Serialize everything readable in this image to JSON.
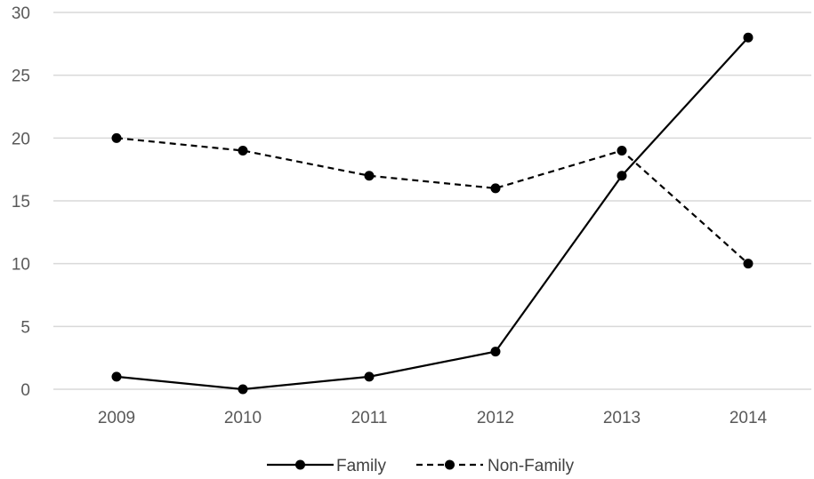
{
  "chart_data": {
    "type": "line",
    "title": "",
    "xlabel": "",
    "ylabel": "",
    "categories": [
      "2009",
      "2010",
      "2011",
      "2012",
      "2013",
      "2014"
    ],
    "ylim": [
      0,
      30
    ],
    "yticks": [
      0,
      5,
      10,
      15,
      20,
      25,
      30
    ],
    "grid": true,
    "legend_position": "bottom",
    "series": [
      {
        "name": "Family",
        "values": [
          1,
          0,
          1,
          3,
          17,
          28
        ],
        "line_style": "solid",
        "color": "#000000",
        "marker": "circle"
      },
      {
        "name": "Non-Family",
        "values": [
          20,
          19,
          17,
          16,
          19,
          10
        ],
        "line_style": "dashed",
        "color": "#000000",
        "marker": "circle"
      }
    ]
  }
}
